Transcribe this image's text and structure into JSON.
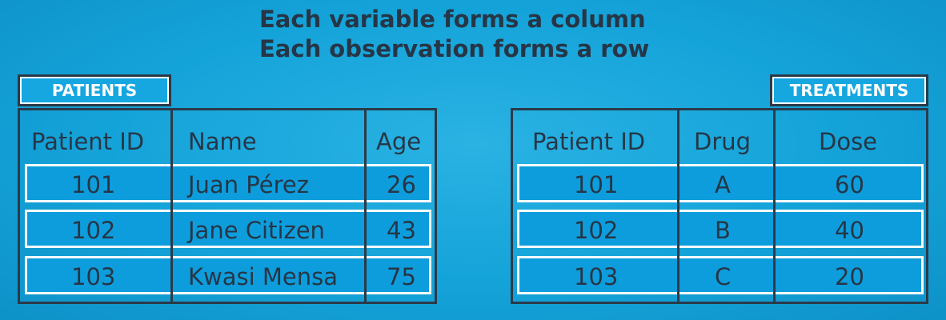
{
  "headline": {
    "line1": "Each variable forms a column",
    "line2": "Each observation forms a row"
  },
  "patients": {
    "tag": "PATIENTS",
    "headers": [
      "Patient ID",
      "Name",
      "Age"
    ],
    "rows": [
      [
        "101",
        "Juan Pérez",
        "26"
      ],
      [
        "102",
        "Jane Citizen",
        "43"
      ],
      [
        "103",
        "Kwasi Mensa",
        "75"
      ]
    ]
  },
  "treatments": {
    "tag": "TREATMENTS",
    "headers": [
      "Patient ID",
      "Drug",
      "Dose"
    ],
    "rows": [
      [
        "101",
        "A",
        "60"
      ],
      [
        "102",
        "B",
        "40"
      ],
      [
        "103",
        "C",
        "20"
      ]
    ]
  },
  "colors": {
    "background": "#14a3d9",
    "row_fill": "#0d9ddc",
    "border": "#2b3a48",
    "row_border": "#ffffff"
  }
}
